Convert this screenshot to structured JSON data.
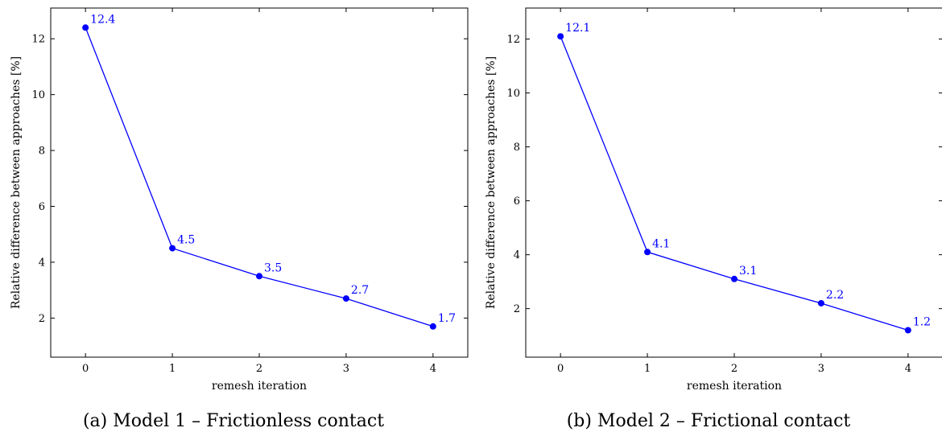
{
  "chart_data": [
    {
      "type": "line",
      "caption": "(a) Model 1 – Frictionless contact",
      "xlabel": "remesh iteration",
      "ylabel": "Relative difference between approaches [%]",
      "x": [
        0,
        1,
        2,
        3,
        4
      ],
      "values": [
        12.4,
        4.5,
        3.5,
        2.7,
        1.7
      ],
      "labels": [
        "12.4",
        "4.5",
        "3.5",
        "2.7",
        "1.7"
      ],
      "xlim": [
        -0.4,
        4.4
      ],
      "ylim": [
        0.6,
        13.1
      ],
      "xticks": [
        0,
        1,
        2,
        3,
        4
      ],
      "yticks": [
        2,
        4,
        6,
        8,
        10,
        12
      ],
      "color": "#0000ff",
      "grid": false
    },
    {
      "type": "line",
      "caption": "(b) Model 2 – Frictional contact",
      "xlabel": "remesh iteration",
      "ylabel": "Relative difference between approaches [%]",
      "x": [
        0,
        1,
        2,
        3,
        4
      ],
      "values": [
        12.1,
        4.1,
        3.1,
        2.2,
        1.2
      ],
      "labels": [
        "12.1",
        "4.1",
        "3.1",
        "2.2",
        "1.2"
      ],
      "xlim": [
        -0.4,
        4.4
      ],
      "ylim": [
        0.2,
        13.15
      ],
      "xticks": [
        0,
        1,
        2,
        3,
        4
      ],
      "yticks": [
        2,
        4,
        6,
        8,
        10,
        12
      ],
      "color": "#0000ff",
      "grid": false
    }
  ]
}
